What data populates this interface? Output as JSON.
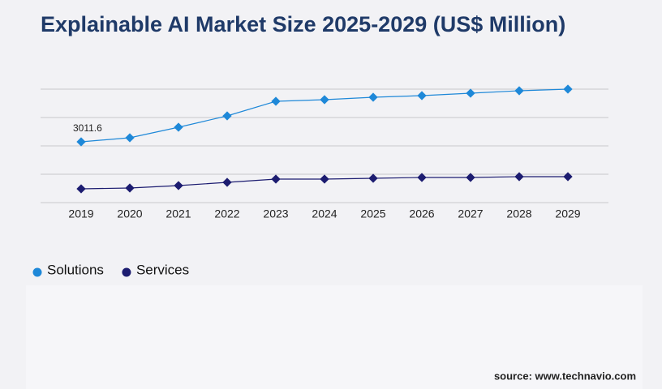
{
  "chart_data": {
    "type": "line",
    "title": "Explainable AI Market Size 2025-2029 (US$ Million)",
    "categories": [
      "2019",
      "2020",
      "2021",
      "2022",
      "2023",
      "2024",
      "2025",
      "2026",
      "2027",
      "2028",
      "2029"
    ],
    "series": [
      {
        "name": "Solutions",
        "color": "#1e88d8",
        "values": [
          3011.6,
          3212,
          3734,
          4296,
          5019,
          5099,
          5220,
          5300,
          5420,
          5541,
          5621
        ]
      },
      {
        "name": "Services",
        "color": "#1c1c70",
        "values": [
          683,
          723,
          843,
          1004,
          1164,
          1164,
          1205,
          1245,
          1245,
          1285,
          1285
        ]
      }
    ],
    "ylim": [
      0,
      5621
    ],
    "yticks": [
      0,
      1405,
      2810,
      4216,
      5621
    ],
    "grid": true,
    "source": "source: www.technavio.com"
  }
}
